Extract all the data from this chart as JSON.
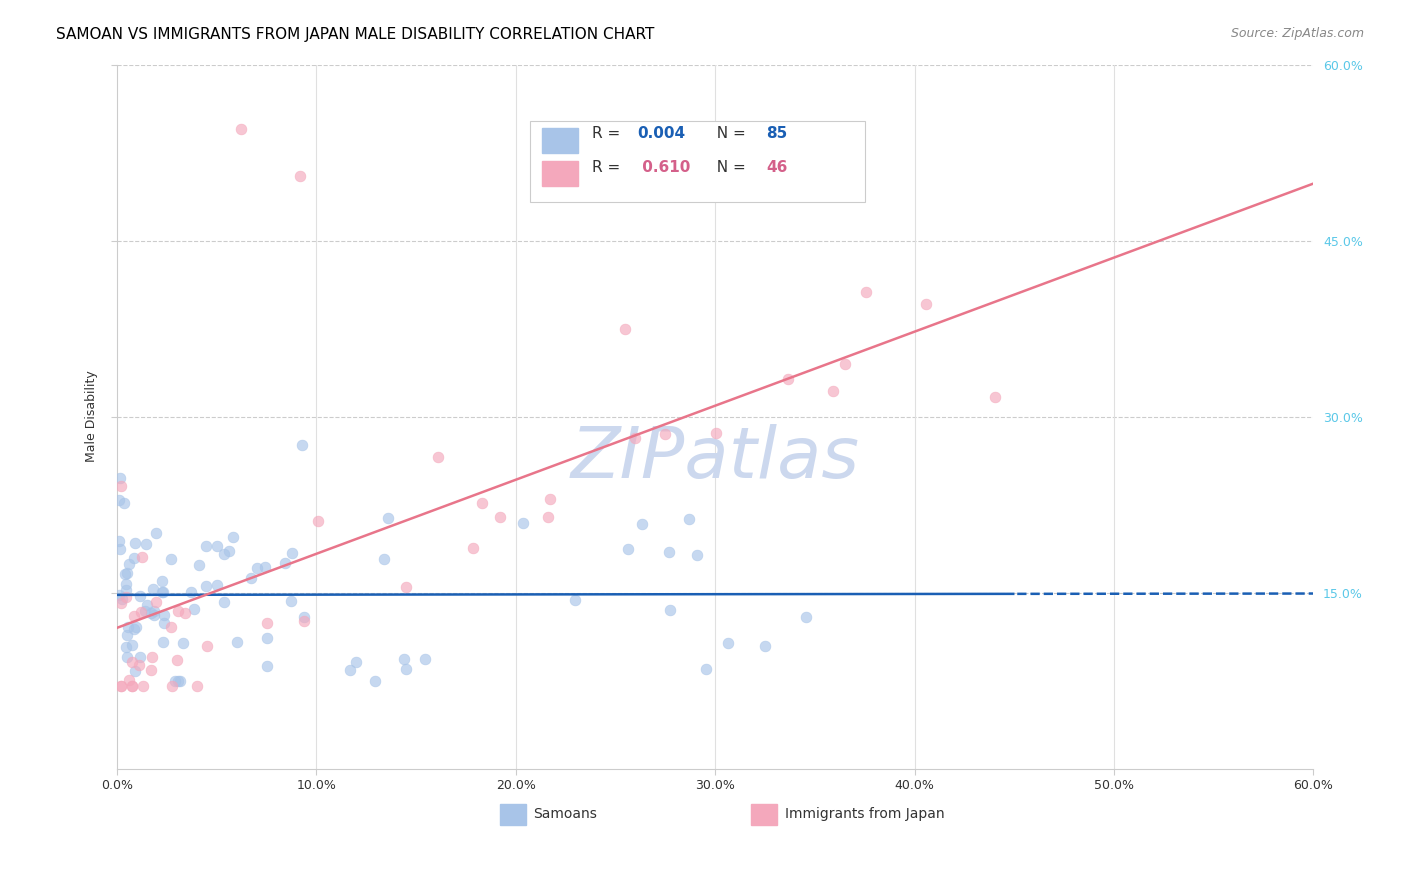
{
  "title": "SAMOAN VS IMMIGRANTS FROM JAPAN MALE DISABILITY CORRELATION CHART",
  "source": "Source: ZipAtlas.com",
  "ylabel": "Male Disability",
  "xlim": [
    0.0,
    0.6
  ],
  "ylim": [
    0.0,
    0.6
  ],
  "ytick_vals": [
    0.15,
    0.3,
    0.45,
    0.6
  ],
  "ytick_labels": [
    "15.0%",
    "30.0%",
    "45.0%",
    "60.0%"
  ],
  "xtick_vals": [
    0.0,
    0.1,
    0.2,
    0.3,
    0.4,
    0.5,
    0.6
  ],
  "xtick_labels": [
    "0.0%",
    "10.0%",
    "20.0%",
    "30.0%",
    "40.0%",
    "50.0%",
    "60.0%"
  ],
  "watermark": "ZIPatlas",
  "samoan_r": 0.004,
  "samoan_n": 85,
  "japan_r": 0.61,
  "japan_n": 46,
  "samoan_line_color": "#1a5fb4",
  "japan_line_color": "#e8758a",
  "samoan_scatter_color": "#a8c4e8",
  "japan_scatter_color": "#f4a8bc",
  "samoan_scatter_edge": "#a8c4e8",
  "japan_scatter_edge": "#f4a8bc",
  "grid_h_color": "#cccccc",
  "grid_v_color": "#e0e0e0",
  "background_color": "#ffffff",
  "title_fontsize": 11,
  "axis_label_fontsize": 9,
  "tick_fontsize": 9,
  "source_fontsize": 9,
  "watermark_color": "#ccd8ee",
  "right_tick_color": "#5bc8e8",
  "legend_r_color": "#1a5fb4",
  "legend_n_color": "#1a1a1a",
  "legend_pink_r_color": "#d4608a",
  "legend_border_color": "#cccccc",
  "bottom_legend_labels": [
    "Samoans",
    "Immigrants from Japan"
  ],
  "scatter_size": 60,
  "scatter_alpha": 0.65,
  "line_width": 1.8
}
